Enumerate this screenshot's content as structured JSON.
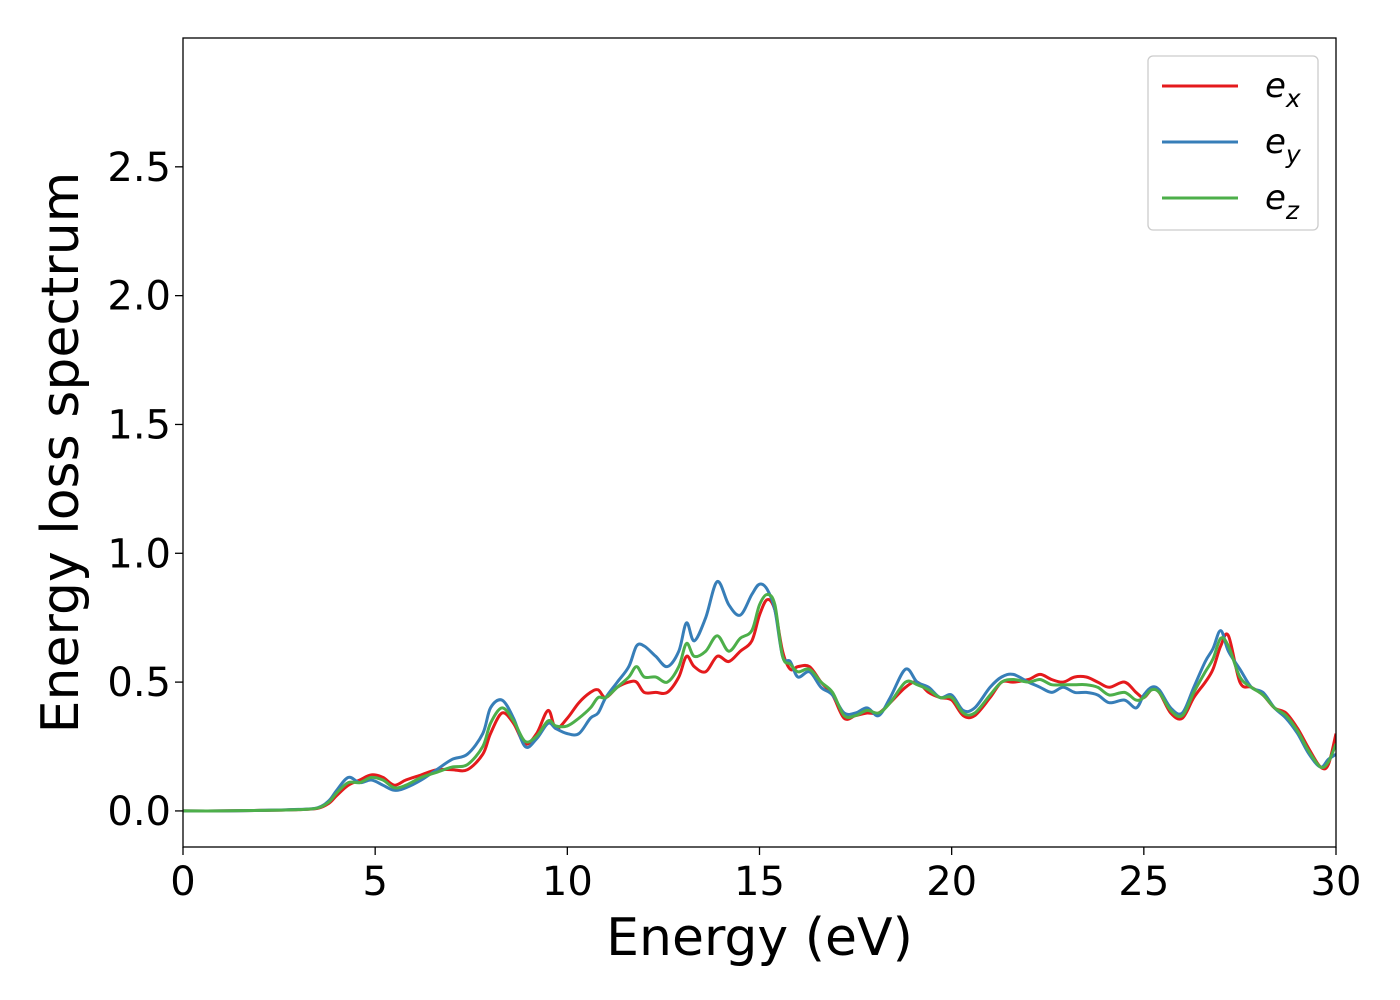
{
  "chart_data": {
    "type": "line",
    "title": "",
    "xlabel": "Energy (eV)",
    "ylabel": "Energy loss spectrum",
    "xlim": [
      0,
      30
    ],
    "ylim": [
      -0.14,
      3.0
    ],
    "xticks": [
      0,
      5,
      10,
      15,
      20,
      25,
      30
    ],
    "xtick_labels": [
      "0",
      "5",
      "10",
      "15",
      "20",
      "25",
      "30"
    ],
    "yticks": [
      0.0,
      0.5,
      1.0,
      1.5,
      2.0,
      2.5
    ],
    "ytick_labels": [
      "0.0",
      "0.5",
      "1.0",
      "1.5",
      "2.0",
      "2.5"
    ],
    "grid": false,
    "legend_position": "top-right",
    "series": [
      {
        "name": "e_x",
        "legend_base": "e",
        "legend_sub": "x",
        "color": "#e41a1c",
        "x": [
          0,
          1,
          2,
          3,
          3.5,
          3.8,
          4.0,
          4.3,
          4.6,
          4.9,
          5.2,
          5.5,
          5.8,
          6.2,
          6.6,
          7.0,
          7.4,
          7.8,
          8.0,
          8.3,
          8.6,
          8.9,
          9.2,
          9.5,
          9.7,
          10.0,
          10.3,
          10.6,
          10.8,
          11.0,
          11.3,
          11.6,
          11.8,
          12.0,
          12.3,
          12.6,
          12.9,
          13.1,
          13.3,
          13.6,
          13.9,
          14.2,
          14.5,
          14.8,
          15.0,
          15.2,
          15.4,
          15.6,
          15.8,
          16.0,
          16.3,
          16.6,
          16.9,
          17.2,
          17.5,
          17.8,
          18.1,
          18.4,
          18.8,
          19.1,
          19.4,
          19.7,
          20.0,
          20.3,
          20.6,
          21.0,
          21.3,
          21.6,
          22.0,
          22.3,
          22.6,
          22.9,
          23.2,
          23.5,
          23.8,
          24.1,
          24.5,
          24.8,
          25.0,
          25.2,
          25.4,
          25.7,
          26.0,
          26.3,
          26.6,
          26.8,
          27.0,
          27.2,
          27.5,
          27.8,
          28.1,
          28.4,
          28.7,
          29.0,
          29.3,
          29.6,
          29.8,
          30.0
        ],
        "y": [
          0.0,
          0.0,
          0.002,
          0.005,
          0.01,
          0.03,
          0.06,
          0.1,
          0.12,
          0.14,
          0.13,
          0.1,
          0.12,
          0.14,
          0.16,
          0.16,
          0.16,
          0.22,
          0.3,
          0.38,
          0.34,
          0.26,
          0.3,
          0.39,
          0.32,
          0.36,
          0.42,
          0.46,
          0.47,
          0.44,
          0.48,
          0.5,
          0.5,
          0.46,
          0.46,
          0.46,
          0.52,
          0.6,
          0.56,
          0.54,
          0.6,
          0.58,
          0.62,
          0.66,
          0.76,
          0.82,
          0.78,
          0.62,
          0.55,
          0.56,
          0.56,
          0.5,
          0.45,
          0.36,
          0.37,
          0.38,
          0.38,
          0.42,
          0.48,
          0.5,
          0.46,
          0.44,
          0.43,
          0.37,
          0.37,
          0.44,
          0.5,
          0.5,
          0.51,
          0.53,
          0.51,
          0.5,
          0.52,
          0.52,
          0.5,
          0.48,
          0.5,
          0.46,
          0.44,
          0.47,
          0.46,
          0.38,
          0.36,
          0.44,
          0.5,
          0.55,
          0.64,
          0.68,
          0.5,
          0.48,
          0.45,
          0.4,
          0.38,
          0.32,
          0.24,
          0.17,
          0.18,
          0.3
        ]
      },
      {
        "name": "e_y",
        "legend_base": "e",
        "legend_sub": "y",
        "color": "#377eb8",
        "x": [
          0,
          1,
          2,
          3,
          3.5,
          3.8,
          4.0,
          4.3,
          4.6,
          4.9,
          5.2,
          5.5,
          5.8,
          6.2,
          6.6,
          7.0,
          7.4,
          7.8,
          8.0,
          8.3,
          8.6,
          8.9,
          9.2,
          9.5,
          9.7,
          10.0,
          10.3,
          10.6,
          10.8,
          11.0,
          11.3,
          11.6,
          11.8,
          12.0,
          12.3,
          12.6,
          12.9,
          13.1,
          13.3,
          13.6,
          13.9,
          14.2,
          14.5,
          14.8,
          15.0,
          15.2,
          15.4,
          15.6,
          15.8,
          16.0,
          16.3,
          16.6,
          16.9,
          17.2,
          17.5,
          17.8,
          18.1,
          18.4,
          18.8,
          19.1,
          19.4,
          19.7,
          20.0,
          20.3,
          20.6,
          21.0,
          21.3,
          21.6,
          22.0,
          22.3,
          22.6,
          22.9,
          23.2,
          23.5,
          23.8,
          24.1,
          24.5,
          24.8,
          25.0,
          25.2,
          25.4,
          25.7,
          26.0,
          26.3,
          26.6,
          26.8,
          27.0,
          27.2,
          27.5,
          27.8,
          28.1,
          28.4,
          28.7,
          29.0,
          29.3,
          29.6,
          29.8,
          30.0
        ],
        "y": [
          0.0,
          0.0,
          0.002,
          0.006,
          0.012,
          0.04,
          0.08,
          0.13,
          0.11,
          0.12,
          0.1,
          0.08,
          0.09,
          0.12,
          0.16,
          0.2,
          0.22,
          0.3,
          0.4,
          0.43,
          0.36,
          0.25,
          0.28,
          0.34,
          0.32,
          0.3,
          0.3,
          0.36,
          0.38,
          0.44,
          0.5,
          0.56,
          0.64,
          0.64,
          0.6,
          0.56,
          0.62,
          0.73,
          0.66,
          0.75,
          0.89,
          0.8,
          0.76,
          0.84,
          0.88,
          0.86,
          0.78,
          0.6,
          0.58,
          0.52,
          0.54,
          0.48,
          0.45,
          0.38,
          0.38,
          0.4,
          0.37,
          0.44,
          0.55,
          0.5,
          0.48,
          0.44,
          0.45,
          0.39,
          0.4,
          0.48,
          0.52,
          0.53,
          0.5,
          0.48,
          0.46,
          0.48,
          0.46,
          0.46,
          0.45,
          0.42,
          0.43,
          0.4,
          0.45,
          0.48,
          0.47,
          0.4,
          0.38,
          0.48,
          0.58,
          0.63,
          0.7,
          0.62,
          0.55,
          0.48,
          0.46,
          0.4,
          0.36,
          0.3,
          0.22,
          0.17,
          0.2,
          0.22
        ]
      },
      {
        "name": "e_z",
        "legend_base": "e",
        "legend_sub": "z",
        "color": "#4daf4a",
        "x": [
          0,
          1,
          2,
          3,
          3.5,
          3.8,
          4.0,
          4.3,
          4.6,
          4.9,
          5.2,
          5.5,
          5.8,
          6.2,
          6.6,
          7.0,
          7.4,
          7.8,
          8.0,
          8.3,
          8.6,
          8.9,
          9.2,
          9.5,
          9.7,
          10.0,
          10.3,
          10.6,
          10.8,
          11.0,
          11.3,
          11.6,
          11.8,
          12.0,
          12.3,
          12.6,
          12.9,
          13.1,
          13.3,
          13.6,
          13.9,
          14.2,
          14.5,
          14.8,
          15.0,
          15.2,
          15.4,
          15.6,
          15.8,
          16.0,
          16.3,
          16.6,
          16.9,
          17.2,
          17.5,
          17.8,
          18.1,
          18.4,
          18.8,
          19.1,
          19.4,
          19.7,
          20.0,
          20.3,
          20.6,
          21.0,
          21.3,
          21.6,
          22.0,
          22.3,
          22.6,
          22.9,
          23.2,
          23.5,
          23.8,
          24.1,
          24.5,
          24.8,
          25.0,
          25.2,
          25.4,
          25.7,
          26.0,
          26.3,
          26.6,
          26.8,
          27.0,
          27.2,
          27.5,
          27.8,
          28.1,
          28.4,
          28.7,
          29.0,
          29.3,
          29.6,
          29.8,
          30.0
        ],
        "y": [
          0.0,
          0.0,
          0.002,
          0.005,
          0.011,
          0.035,
          0.07,
          0.11,
          0.11,
          0.13,
          0.12,
          0.09,
          0.1,
          0.13,
          0.15,
          0.17,
          0.18,
          0.25,
          0.34,
          0.4,
          0.35,
          0.27,
          0.29,
          0.35,
          0.33,
          0.33,
          0.36,
          0.4,
          0.44,
          0.44,
          0.48,
          0.52,
          0.56,
          0.52,
          0.52,
          0.5,
          0.56,
          0.65,
          0.6,
          0.62,
          0.68,
          0.62,
          0.67,
          0.7,
          0.8,
          0.84,
          0.8,
          0.6,
          0.57,
          0.54,
          0.55,
          0.5,
          0.46,
          0.37,
          0.37,
          0.39,
          0.38,
          0.42,
          0.5,
          0.49,
          0.47,
          0.44,
          0.44,
          0.38,
          0.38,
          0.45,
          0.5,
          0.51,
          0.5,
          0.51,
          0.49,
          0.49,
          0.49,
          0.49,
          0.48,
          0.45,
          0.46,
          0.43,
          0.44,
          0.47,
          0.46,
          0.39,
          0.37,
          0.46,
          0.54,
          0.59,
          0.67,
          0.64,
          0.52,
          0.48,
          0.45,
          0.4,
          0.37,
          0.31,
          0.23,
          0.17,
          0.19,
          0.26
        ]
      }
    ]
  }
}
